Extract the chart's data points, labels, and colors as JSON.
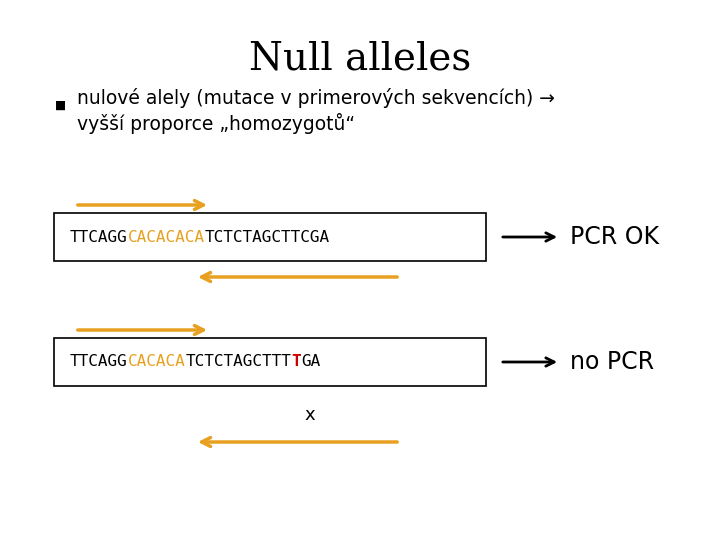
{
  "title": "Null alleles",
  "title_fontsize": 28,
  "bullet_text_line1": "nulové alely (mutace v primerových sekvencích) →",
  "bullet_text_line2": "vyšší proporce „homozygotů“",
  "bullet_fontsize": 13.5,
  "bg_color": "#ffffff",
  "arrow_color": "#E8A020",
  "black_arrow_color": "#000000",
  "box_color": "#000000",
  "seq1_prefix": "TTCAGG",
  "seq1_middle": "CACACACA",
  "seq1_suffix": "TCTCTAGCTTCGA",
  "seq2_prefix": "TTCAGG",
  "seq2_middle": "CACACA",
  "seq2_suffix_pre": "TCTCTAGCTTT",
  "seq2_mutation": "T",
  "seq2_suffix_post": "GA",
  "label1": "PCR OK",
  "label2": "no PCR",
  "label_fontsize": 17,
  "seq_fontsize": 11.5,
  "x_label": "x",
  "x_label_fontsize": 13
}
